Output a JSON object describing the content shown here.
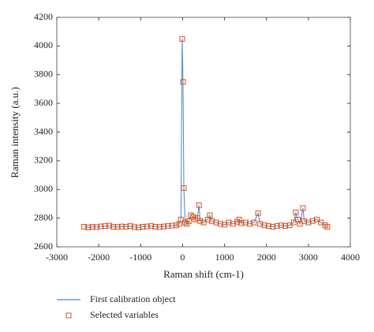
{
  "chart_data": {
    "type": "line",
    "xlabel": "Raman shift (cm-1)",
    "ylabel": "Raman intensity (a.u.)",
    "xlim": [
      -3000,
      4000
    ],
    "xticks": [
      -3000,
      -2000,
      -1000,
      0,
      1000,
      2000,
      3000,
      4000
    ],
    "ylim": [
      2600,
      4200
    ],
    "yticks": [
      2600,
      2800,
      3000,
      3200,
      3400,
      3600,
      3800,
      4000,
      4200
    ],
    "grid": false,
    "legend": "bottom",
    "series": [
      {
        "name": "First calibration object",
        "color": "#4a86d4",
        "type": "line",
        "x": [
          -2350,
          -2250,
          -2150,
          -2050,
          -1950,
          -1850,
          -1750,
          -1650,
          -1550,
          -1450,
          -1350,
          -1250,
          -1150,
          -1050,
          -950,
          -850,
          -750,
          -650,
          -550,
          -450,
          -350,
          -250,
          -150,
          -80,
          -40,
          -10,
          10,
          30,
          60,
          100,
          150,
          200,
          250,
          300,
          350,
          390,
          420,
          500,
          600,
          650,
          700,
          800,
          900,
          1000,
          1100,
          1200,
          1300,
          1350,
          1400,
          1500,
          1600,
          1700,
          1800,
          1850,
          1950,
          2050,
          2150,
          2250,
          2350,
          2450,
          2550,
          2650,
          2700,
          2750,
          2800,
          2870,
          2900,
          3000,
          3100,
          3200,
          3300,
          3400,
          3450
        ],
        "values": [
          2740,
          2735,
          2740,
          2738,
          2742,
          2745,
          2748,
          2740,
          2738,
          2742,
          2740,
          2745,
          2738,
          2735,
          2740,
          2742,
          2745,
          2740,
          2738,
          2742,
          2745,
          2748,
          2750,
          2760,
          2790,
          4050,
          3750,
          3010,
          2770,
          2760,
          2780,
          2820,
          2810,
          2790,
          2800,
          2890,
          2780,
          2770,
          2790,
          2820,
          2780,
          2770,
          2760,
          2755,
          2770,
          2760,
          2775,
          2790,
          2765,
          2770,
          2760,
          2770,
          2835,
          2760,
          2750,
          2745,
          2740,
          2745,
          2750,
          2745,
          2750,
          2770,
          2840,
          2790,
          2760,
          2870,
          2780,
          2770,
          2780,
          2790,
          2770,
          2750,
          2740
        ]
      },
      {
        "name": "Selected variables",
        "color": "#d9541e",
        "type": "scatter",
        "x": [
          -2350,
          -2250,
          -2150,
          -2050,
          -1950,
          -1850,
          -1750,
          -1650,
          -1550,
          -1450,
          -1350,
          -1250,
          -1150,
          -1050,
          -950,
          -850,
          -750,
          -650,
          -550,
          -450,
          -350,
          -250,
          -150,
          -80,
          -40,
          -10,
          10,
          30,
          60,
          100,
          150,
          200,
          250,
          300,
          350,
          390,
          420,
          500,
          600,
          650,
          700,
          800,
          900,
          1000,
          1100,
          1200,
          1300,
          1350,
          1400,
          1500,
          1600,
          1700,
          1800,
          1850,
          1950,
          2050,
          2150,
          2250,
          2350,
          2450,
          2550,
          2650,
          2700,
          2750,
          2800,
          2870,
          2900,
          3000,
          3100,
          3200,
          3300,
          3400,
          3450
        ],
        "values": [
          2740,
          2735,
          2740,
          2738,
          2742,
          2745,
          2748,
          2740,
          2738,
          2742,
          2740,
          2745,
          2738,
          2735,
          2740,
          2742,
          2745,
          2740,
          2738,
          2742,
          2745,
          2748,
          2750,
          2760,
          2790,
          4050,
          3750,
          3010,
          2770,
          2760,
          2780,
          2820,
          2810,
          2790,
          2800,
          2890,
          2780,
          2770,
          2790,
          2820,
          2780,
          2770,
          2760,
          2755,
          2770,
          2760,
          2775,
          2790,
          2765,
          2770,
          2760,
          2770,
          2835,
          2760,
          2750,
          2745,
          2740,
          2745,
          2750,
          2745,
          2750,
          2770,
          2840,
          2790,
          2760,
          2870,
          2780,
          2770,
          2780,
          2790,
          2770,
          2750,
          2740
        ]
      }
    ]
  }
}
